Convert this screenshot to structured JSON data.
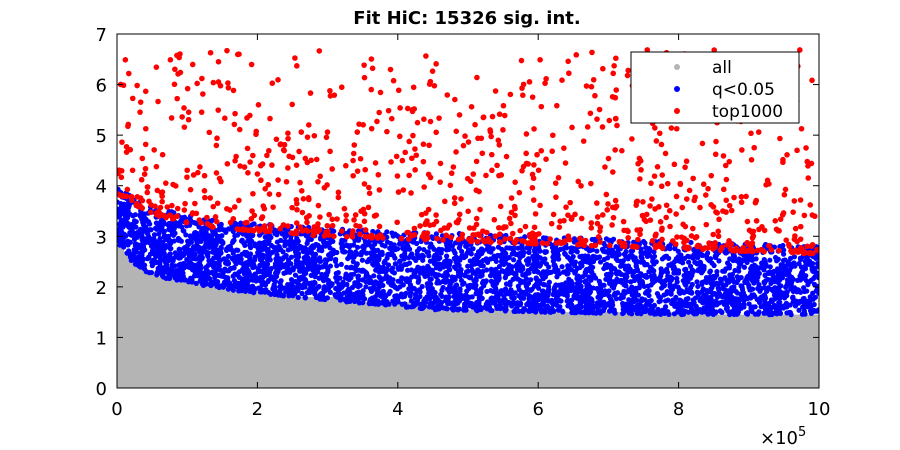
{
  "chart_data": {
    "type": "scatter",
    "title": "Fit HiC: 15326 sig. int.",
    "xlabel": "",
    "ylabel": "",
    "xlim": [
      0,
      1000000
    ],
    "ylim": [
      0,
      7
    ],
    "x_ticks": [
      0,
      200000,
      400000,
      600000,
      800000,
      1000000
    ],
    "x_tick_labels": [
      "0",
      "2",
      "4",
      "6",
      "8",
      "10"
    ],
    "x_exponent": {
      "base": "×10",
      "power": "5"
    },
    "y_ticks": [
      0,
      1,
      2,
      3,
      4,
      5,
      6,
      7
    ],
    "y_tick_labels": [
      "0",
      "1",
      "2",
      "3",
      "4",
      "5",
      "6",
      "7"
    ],
    "grid": false,
    "legend_position": "top-right",
    "series": [
      {
        "name": "all",
        "color": "#b4b4b4",
        "description_points": "dense filled region from y=0 up to a decreasing step boundary",
        "boundary_x": [
          0,
          10000,
          20000,
          40000,
          60000,
          90000,
          130000,
          180000,
          250000,
          330000,
          450000,
          600000,
          800000,
          1000000
        ],
        "boundary_y": [
          2.9,
          2.7,
          2.5,
          2.3,
          2.2,
          2.1,
          2.0,
          1.9,
          1.8,
          1.7,
          1.55,
          1.5,
          1.45,
          1.45
        ]
      },
      {
        "name": "q<0.05",
        "color": "#0000ff",
        "upper_envelope_x": [
          0,
          20000,
          60000,
          120000,
          200000,
          300000,
          400000,
          500000,
          600000,
          700000,
          800000,
          900000,
          1000000
        ],
        "upper_envelope_y": [
          4.0,
          3.8,
          3.55,
          3.35,
          3.25,
          3.15,
          3.1,
          3.05,
          3.0,
          2.95,
          2.9,
          2.85,
          2.8
        ]
      },
      {
        "name": "top1000",
        "color": "#ff0000",
        "y_range": [
          3.0,
          6.7
        ]
      }
    ]
  }
}
